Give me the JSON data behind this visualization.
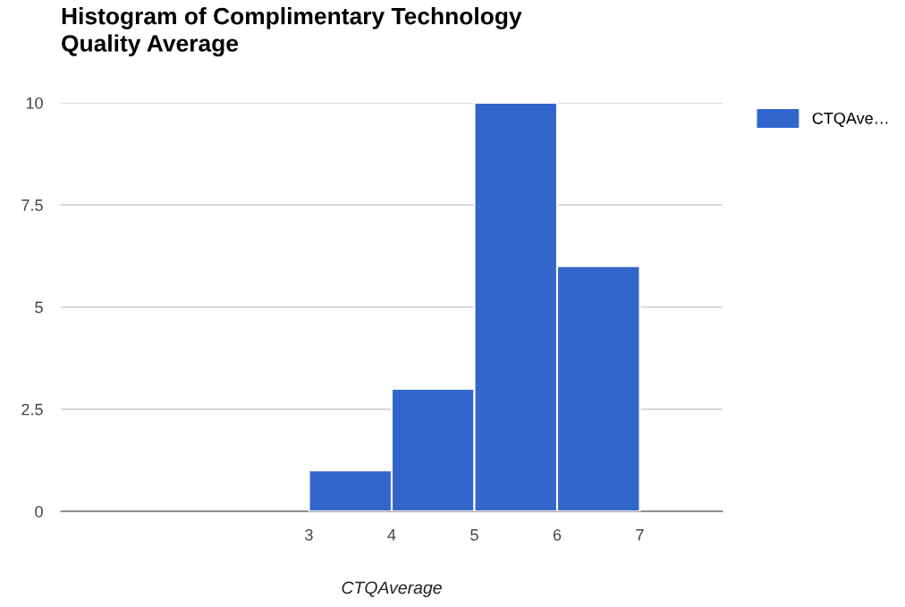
{
  "chart_data": {
    "type": "histogram",
    "title": "Histogram of Complimentary Technology\nQuality Average",
    "xlabel": "CTQAverage",
    "bins": [
      3,
      4,
      5,
      6,
      7
    ],
    "series": [
      {
        "name": "CTQAve…",
        "color": "#3366cc",
        "values": [
          1,
          3,
          10,
          6
        ]
      }
    ],
    "xlim": [
      0,
      8
    ],
    "xticks": [
      3,
      4,
      5,
      6,
      7
    ],
    "ylim": [
      0,
      10
    ],
    "yticks": [
      0,
      {
        "value": 2.5,
        "label": "2.5"
      },
      5,
      {
        "value": 7.5,
        "label": "7.5"
      },
      10
    ],
    "grid": "y",
    "legend": "top right"
  }
}
